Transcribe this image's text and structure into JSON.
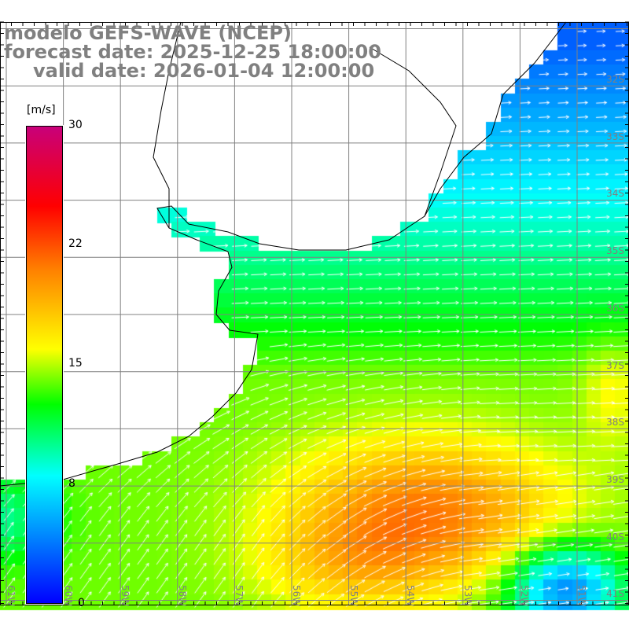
{
  "title": {
    "model": "modelo GEFS-WAVE (NCEP)",
    "forecast": "forecast date: 2025-12-25 18:00:00",
    "valid": "valid date: 2026-01-04 12:00:00"
  },
  "colorbar": {
    "unit": "[m/s]",
    "ticks": [
      "30",
      "22",
      "15",
      "8",
      "0"
    ],
    "range": [
      0,
      30
    ],
    "colors": {
      "0": "#0000ff",
      "8": "#00ffff",
      "12.5": "#00ff00",
      "16": "#ffff00",
      "21": "#ff8000",
      "25": "#ff0000",
      "30": "#c8007a"
    }
  },
  "map": {
    "lat_labels": [
      "32S",
      "33S",
      "34S",
      "35S",
      "36S",
      "37S",
      "38S",
      "39S",
      "40S",
      "41S"
    ],
    "lon_labels": [
      "61W",
      "60W",
      "59W",
      "58W",
      "57W",
      "56W",
      "55W",
      "54W",
      "53W",
      "52W",
      "51W"
    ],
    "grid_color": "#808080",
    "label_color": "#808080",
    "arrow_color": "#ffffff",
    "coast_color": "#000000"
  }
}
